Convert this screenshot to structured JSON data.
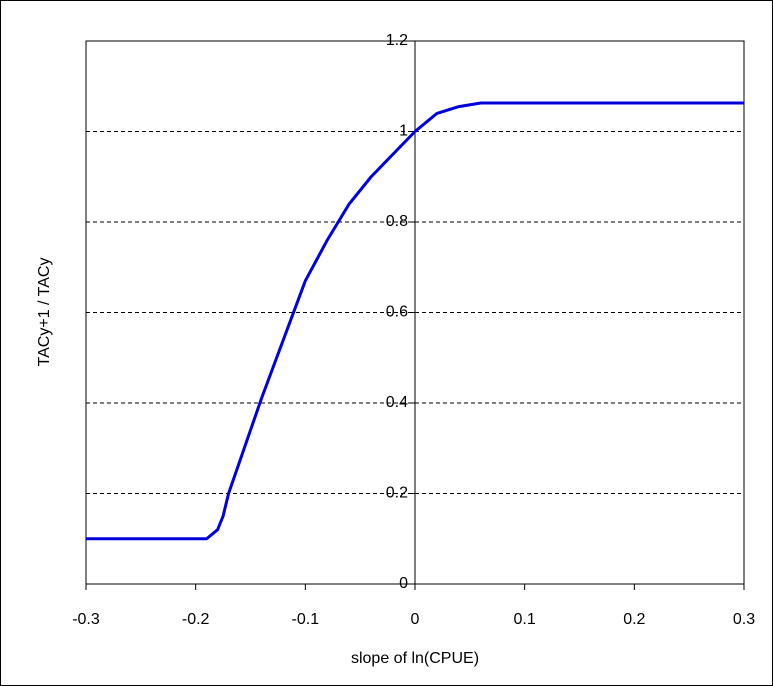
{
  "chart_data": {
    "type": "line",
    "xlabel": "slope of ln(CPUE)",
    "ylabel": "TACy+1 / TACy",
    "x": [
      -0.3,
      -0.19,
      -0.18,
      -0.175,
      -0.17,
      -0.16,
      -0.15,
      -0.14,
      -0.12,
      -0.1,
      -0.08,
      -0.06,
      -0.04,
      -0.02,
      0,
      0.01,
      0.02,
      0.04,
      0.06,
      0.3
    ],
    "series": [
      {
        "name": "TACy+1 / TACy",
        "color": "#0000dd",
        "values": [
          0.1,
          0.1,
          0.12,
          0.15,
          0.2,
          0.27,
          0.34,
          0.41,
          0.54,
          0.67,
          0.76,
          0.84,
          0.9,
          0.95,
          1.0,
          1.02,
          1.04,
          1.055,
          1.063,
          1.063
        ]
      }
    ],
    "xlim": [
      -0.3,
      0.3
    ],
    "xticks": [
      -0.3,
      -0.2,
      -0.1,
      0,
      0.1,
      0.2,
      0.3
    ],
    "ylim": [
      0,
      1.2
    ],
    "yticks": [
      0,
      0.2,
      0.4,
      0.6,
      0.8,
      1,
      1.2
    ],
    "grid": true
  }
}
